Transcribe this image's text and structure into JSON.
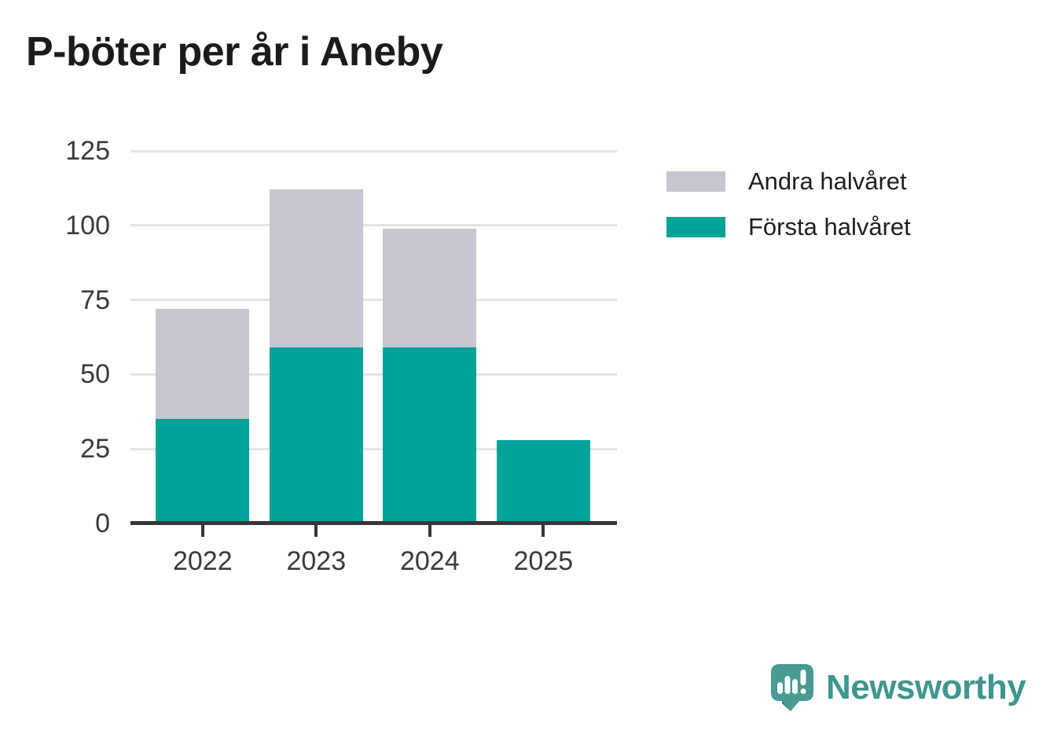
{
  "title": "P-böter per år i Aneby",
  "chart_data": {
    "type": "bar",
    "stacked": true,
    "title": "P-böter per år i Aneby",
    "categories": [
      "2022",
      "2023",
      "2024",
      "2025"
    ],
    "series": [
      {
        "name": "Första halvåret",
        "color": "#00a398",
        "values": [
          35,
          59,
          59,
          28
        ]
      },
      {
        "name": "Andra halvåret",
        "color": "#c8c6d0",
        "values": [
          37,
          53,
          40,
          0
        ]
      }
    ],
    "totals": [
      72,
      112,
      99,
      28
    ],
    "xlabel": "",
    "ylabel": "",
    "ylim": [
      0,
      125
    ],
    "yticks": [
      0,
      25,
      50,
      75,
      100,
      125
    ],
    "grid": true,
    "legend_position": "right"
  },
  "legend": {
    "items": [
      {
        "label": "Andra halvåret",
        "color": "#c8c6d0"
      },
      {
        "label": "Första halvåret",
        "color": "#00a398"
      }
    ]
  },
  "footer": {
    "brand": "Newsworthy",
    "brand_color": "#3f968f",
    "bubble_color": "#489a93",
    "bubble_shadow_color": "#2e7c74"
  },
  "style": {
    "gridline_color": "#e4e3e7",
    "axis_color": "#363636",
    "tick_label_color": "#3a3a3a",
    "title_color": "#1b1b1b"
  }
}
